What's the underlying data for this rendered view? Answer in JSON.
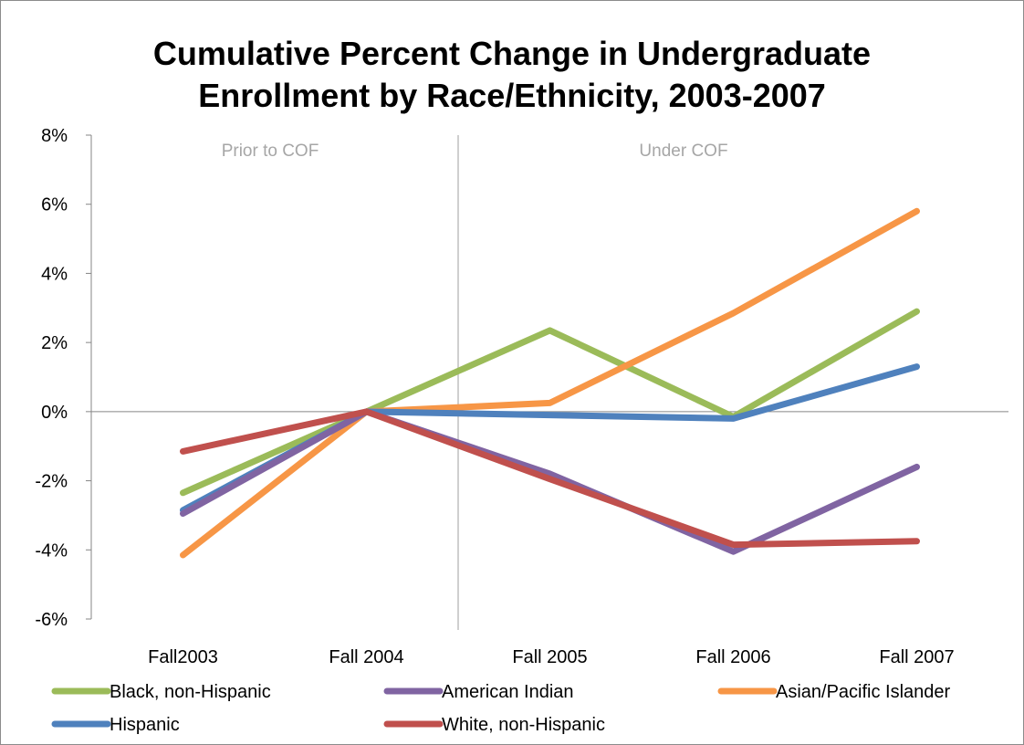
{
  "chart_data": {
    "type": "line",
    "title_lines": [
      "Cumulative Percent Change in Undergraduate",
      "Enrollment by Race/Ethnicity, 2003-2007"
    ],
    "xlabel": "",
    "ylabel": "",
    "categories": [
      "Fall2003",
      "Fall 2004",
      "Fall 2005",
      "Fall 2006",
      "Fall 2007"
    ],
    "ylim": [
      -6,
      8
    ],
    "yticks": [
      8,
      6,
      4,
      2,
      0,
      -2,
      -4,
      -6
    ],
    "ytick_labels": [
      "8%",
      "6%",
      "4%",
      "2%",
      "0%",
      "-2%",
      "-4%",
      "-6%"
    ],
    "grid": false,
    "legend_position": "bottom",
    "annotations": {
      "left": "Prior to COF",
      "right": "Under COF"
    },
    "series": [
      {
        "name": "Black, non-Hispanic",
        "color": "#9bbb59",
        "values": [
          -2.35,
          0.0,
          2.35,
          -0.15,
          2.9
        ]
      },
      {
        "name": "American Indian",
        "color": "#8064a2",
        "values": [
          -2.95,
          0.0,
          -1.8,
          -4.05,
          -1.6
        ]
      },
      {
        "name": "Asian/Pacific Islander",
        "color": "#f79646",
        "values": [
          -4.15,
          0.0,
          0.25,
          2.85,
          5.8
        ]
      },
      {
        "name": "Hispanic",
        "color": "#4f81bd",
        "values": [
          -2.85,
          0.0,
          -0.1,
          -0.2,
          1.3
        ]
      },
      {
        "name": "White, non-Hispanic",
        "color": "#c0504d",
        "values": [
          -1.15,
          0.0,
          -1.95,
          -3.85,
          -3.75
        ]
      }
    ]
  }
}
